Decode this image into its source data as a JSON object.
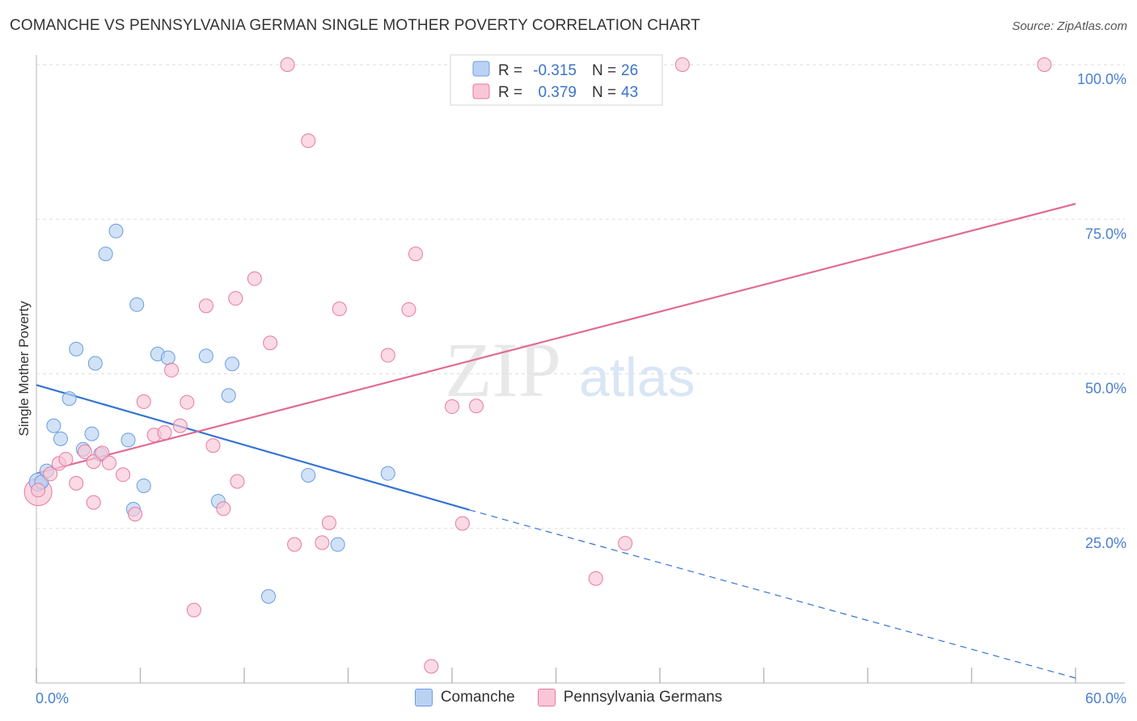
{
  "header": {
    "title": "COMANCHE VS PENNSYLVANIA GERMAN SINGLE MOTHER POVERTY CORRELATION CHART",
    "source": "Source: ZipAtlas.com"
  },
  "watermark": {
    "zip": "ZIP",
    "atlas": "atlas"
  },
  "legend": {
    "rows": [
      {
        "r_label": "R =",
        "r_value": "-0.315",
        "n_label": "N =",
        "n_value": "26",
        "color": "#6b9de0",
        "fill": "#b9d2f3"
      },
      {
        "r_label": "R =",
        "r_value": "0.379",
        "n_label": "N =",
        "n_value": "43",
        "color": "#e87a9e",
        "fill": "#f8c6d6"
      }
    ],
    "bottom": [
      "Comanche",
      "Pennsylvania Germans"
    ]
  },
  "chart_data": {
    "type": "scatter",
    "title": "COMANCHE VS PENNSYLVANIA GERMAN SINGLE MOTHER POVERTY CORRELATION CHART",
    "xlabel": "",
    "ylabel": "Single Mother Poverty",
    "xlim": [
      0,
      60
    ],
    "ylim": [
      0,
      100
    ],
    "x_tick_labels": [
      "0.0%",
      "60.0%"
    ],
    "y_ticks": [
      25,
      50,
      75,
      100
    ],
    "y_tick_labels": [
      "25.0%",
      "50.0%",
      "75.0%",
      "100.0%"
    ],
    "series": [
      {
        "name": "Comanche",
        "color": "#6b9de0",
        "fill": "#b9d2f3",
        "points": [
          [
            0.3,
            32.5
          ],
          [
            0.6,
            34.3
          ],
          [
            1.0,
            41.6
          ],
          [
            1.4,
            39.5
          ],
          [
            1.9,
            46.0
          ],
          [
            2.3,
            54.0
          ],
          [
            2.7,
            37.8
          ],
          [
            3.2,
            40.3
          ],
          [
            3.4,
            51.7
          ],
          [
            3.7,
            37.0
          ],
          [
            4.6,
            73.1
          ],
          [
            4.0,
            69.4
          ],
          [
            5.3,
            39.3
          ],
          [
            5.6,
            28.1
          ],
          [
            5.8,
            61.2
          ],
          [
            6.2,
            31.9
          ],
          [
            7.0,
            53.2
          ],
          [
            7.6,
            52.6
          ],
          [
            9.8,
            52.9
          ],
          [
            10.5,
            29.4
          ],
          [
            11.1,
            46.5
          ],
          [
            11.3,
            51.6
          ],
          [
            13.4,
            14.0
          ],
          [
            15.7,
            33.6
          ],
          [
            17.4,
            22.4
          ],
          [
            20.3,
            33.9
          ]
        ],
        "trend": {
          "x0": 0,
          "y0": 48.2,
          "x1": 25.0,
          "y1": 28.0,
          "dash_x1": 60.0,
          "dash_y1": 0.8
        }
      },
      {
        "name": "Pennsylvania Germans",
        "color": "#e87a9e",
        "fill": "#f8c6d6",
        "points": [
          [
            0.1,
            31.2
          ],
          [
            0.8,
            33.8
          ],
          [
            1.3,
            35.5
          ],
          [
            1.7,
            36.2
          ],
          [
            2.3,
            32.3
          ],
          [
            2.8,
            37.4
          ],
          [
            3.3,
            29.2
          ],
          [
            3.3,
            35.8
          ],
          [
            3.8,
            37.2
          ],
          [
            4.2,
            35.6
          ],
          [
            5.0,
            33.7
          ],
          [
            5.7,
            27.3
          ],
          [
            6.2,
            45.5
          ],
          [
            6.8,
            40.1
          ],
          [
            7.4,
            40.5
          ],
          [
            7.8,
            50.6
          ],
          [
            8.3,
            41.6
          ],
          [
            8.7,
            45.4
          ],
          [
            9.1,
            11.8
          ],
          [
            9.8,
            61.0
          ],
          [
            10.2,
            38.4
          ],
          [
            10.8,
            28.2
          ],
          [
            11.5,
            62.2
          ],
          [
            11.6,
            32.6
          ],
          [
            12.6,
            65.4
          ],
          [
            13.5,
            55.0
          ],
          [
            14.5,
            100.0
          ],
          [
            14.9,
            22.4
          ],
          [
            15.7,
            87.7
          ],
          [
            16.5,
            22.7
          ],
          [
            16.9,
            25.9
          ],
          [
            17.5,
            60.5
          ],
          [
            20.3,
            53.0
          ],
          [
            21.5,
            60.4
          ],
          [
            21.9,
            69.4
          ],
          [
            22.8,
            2.7
          ],
          [
            24.0,
            44.7
          ],
          [
            24.6,
            25.8
          ],
          [
            25.4,
            44.8
          ],
          [
            32.3,
            16.9
          ],
          [
            34.0,
            22.6
          ],
          [
            37.3,
            100.0
          ],
          [
            58.2,
            100.0
          ]
        ],
        "trend": {
          "x0": 0,
          "y0": 33.9,
          "x1": 60.0,
          "y1": 77.5
        }
      }
    ]
  }
}
